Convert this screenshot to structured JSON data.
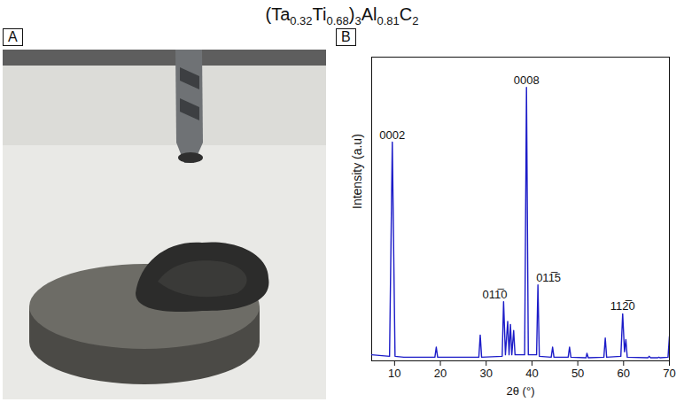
{
  "figure": {
    "title_segments": [
      {
        "text": "(Ta",
        "sub": false
      },
      {
        "text": "0.32",
        "sub": true
      },
      {
        "text": "Ti",
        "sub": false
      },
      {
        "text": "0.68",
        "sub": true
      },
      {
        "text": ")",
        "sub": false
      },
      {
        "text": "3",
        "sub": true
      },
      {
        "text": "Al",
        "sub": false
      },
      {
        "text": "0.81",
        "sub": true
      },
      {
        "text": "C",
        "sub": false
      },
      {
        "text": "2",
        "sub": true
      }
    ],
    "panel_labels": [
      "A",
      "B"
    ]
  },
  "chart_data": {
    "type": "line",
    "x_label": "2θ (°)",
    "y_label": "Intensity (a.u)",
    "color": "#1c1cc8",
    "x": [
      5,
      8.9,
      9.5,
      10.1,
      12,
      18.8,
      19.1,
      19.4,
      28.4,
      28.7,
      29.0,
      33.5,
      33.8,
      34.2,
      34.7,
      35.0,
      35.3,
      35.6,
      36.0,
      36.3,
      38.4,
      38.8,
      39.2,
      41.0,
      41.3,
      41.6,
      44.2,
      44.5,
      44.8,
      47.9,
      48.2,
      48.5,
      51.8,
      52.0,
      52.3,
      55.7,
      56.0,
      56.3,
      59.4,
      59.8,
      60.2,
      60.5,
      60.8,
      65.3,
      65.6,
      65.9,
      67.4,
      67.7,
      68.0,
      69.7,
      70
    ],
    "values": [
      0.02,
      0.015,
      0.72,
      0.015,
      0.012,
      0.012,
      0.045,
      0.012,
      0.012,
      0.085,
      0.012,
      0.015,
      0.195,
      0.02,
      0.13,
      0.02,
      0.12,
      0.02,
      0.1,
      0.02,
      0.02,
      0.9,
      0.02,
      0.02,
      0.25,
      0.015,
      0.012,
      0.045,
      0.012,
      0.012,
      0.045,
      0.012,
      0.01,
      0.025,
      0.01,
      0.012,
      0.075,
      0.012,
      0.015,
      0.155,
      0.03,
      0.07,
      0.012,
      0.01,
      0.015,
      0.01,
      0.01,
      0.012,
      0.01,
      0.012,
      0.08
    ],
    "xlim": [
      5,
      70
    ],
    "xticks": [
      10,
      20,
      30,
      40,
      50,
      60,
      70
    ],
    "ylim": [
      0,
      1
    ],
    "yticks": [],
    "tick_labels": "x",
    "annotations": [
      {
        "text": "0002",
        "x": 9.5,
        "y": 0.72
      },
      {
        "text": "0008",
        "x": 38.8,
        "y": 0.9
      },
      {
        "text": "011̅0",
        "x": 33.8,
        "y": 0.195
      },
      {
        "text": "011̅5",
        "x": 41.3,
        "y": 0.25
      },
      {
        "text": "112̅0",
        "x": 59.8,
        "y": 0.155
      }
    ]
  }
}
